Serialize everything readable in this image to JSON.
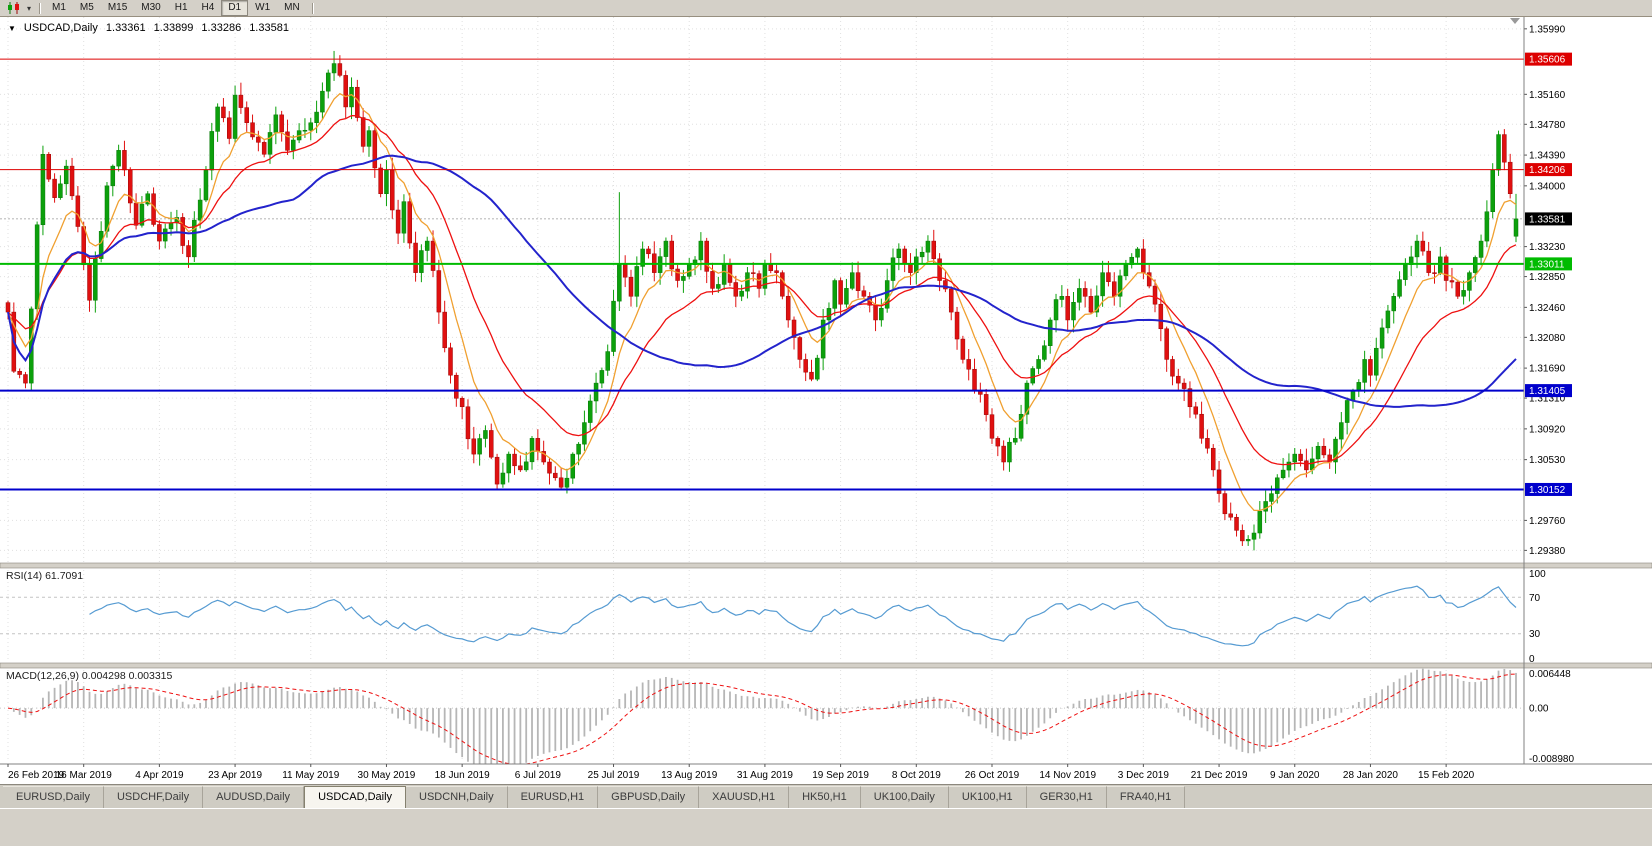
{
  "toolbar": {
    "chart_type_icon": "candlestick-chart",
    "caret_glyph": "▾",
    "timeframes": [
      "M1",
      "M5",
      "M15",
      "M30",
      "H1",
      "H4",
      "D1",
      "W1",
      "MN"
    ],
    "active_timeframe": "D1"
  },
  "chart_header": {
    "collapse_glyph": "▼",
    "symbol": "USDCAD,Daily",
    "open": "1.33361",
    "high": "1.33899",
    "low": "1.33286",
    "close": "1.33581"
  },
  "chart_data": {
    "type": "candlestick",
    "symbol": "USDCAD",
    "timeframe": "Daily",
    "ohlc_last": {
      "open": 1.33361,
      "high": 1.33899,
      "low": 1.33286,
      "close": 1.33581
    },
    "y_axis": {
      "min": 1.2922,
      "max": 1.3614,
      "ticks": [
        1.3599,
        1.3516,
        1.3478,
        1.3439,
        1.34,
        1.3323,
        1.3285,
        1.3246,
        1.3208,
        1.3169,
        1.3131,
        1.3092,
        1.3053,
        1.2976,
        1.2938
      ]
    },
    "levels": [
      {
        "price": 1.35606,
        "label": "1.35606",
        "color": "#dd0000",
        "width": 1
      },
      {
        "price": 1.34206,
        "label": "1.34206",
        "color": "#dd0000",
        "width": 1
      },
      {
        "price": 1.33011,
        "label": "1.33011",
        "color": "#00bb00",
        "width": 2
      },
      {
        "price": 1.31405,
        "label": "1.31405",
        "color": "#0000cc",
        "width": 2
      },
      {
        "price": 1.30152,
        "label": "1.30152",
        "color": "#0000cc",
        "width": 2
      }
    ],
    "current_price": {
      "value": 1.33581,
      "label": "1.33581",
      "badge_color": "#000000"
    },
    "x_labels": [
      "26 Feb 2019",
      "16 Mar 2019",
      "4 Apr 2019",
      "23 Apr 2019",
      "11 May 2019",
      "30 May 2019",
      "18 Jun 2019",
      "6 Jul 2019",
      "25 Jul 2019",
      "13 Aug 2019",
      "31 Aug 2019",
      "19 Sep 2019",
      "8 Oct 2019",
      "26 Oct 2019",
      "14 Nov 2019",
      "3 Dec 2019",
      "21 Dec 2019",
      "9 Jan 2020",
      "28 Jan 2020",
      "15 Feb 2020"
    ],
    "candles_per_label": 13,
    "num_candles": 260,
    "price_path": [
      [
        0,
        1.324
      ],
      [
        1,
        1.3165
      ],
      [
        3,
        1.315
      ],
      [
        6,
        1.344
      ],
      [
        8,
        1.3385
      ],
      [
        10,
        1.3425
      ],
      [
        13,
        1.33
      ],
      [
        14,
        1.3255
      ],
      [
        17,
        1.34
      ],
      [
        19,
        1.3445
      ],
      [
        22,
        1.335
      ],
      [
        24,
        1.339
      ],
      [
        26,
        1.333
      ],
      [
        29,
        1.336
      ],
      [
        31,
        1.331
      ],
      [
        34,
        1.342
      ],
      [
        36,
        1.35
      ],
      [
        38,
        1.346
      ],
      [
        39,
        1.3515
      ],
      [
        41,
        1.348
      ],
      [
        44,
        1.344
      ],
      [
        46,
        1.349
      ],
      [
        48,
        1.3445
      ],
      [
        50,
        1.347
      ],
      [
        52,
        1.348
      ],
      [
        54,
        1.352
      ],
      [
        56,
        1.3555
      ],
      [
        57,
        1.354
      ],
      [
        58,
        1.35
      ],
      [
        59,
        1.3525
      ],
      [
        61,
        1.345
      ],
      [
        62,
        1.347
      ],
      [
        64,
        1.339
      ],
      [
        65,
        1.342
      ],
      [
        67,
        1.334
      ],
      [
        68,
        1.338
      ],
      [
        70,
        1.329
      ],
      [
        72,
        1.333
      ],
      [
        74,
        1.324
      ],
      [
        76,
        1.316
      ],
      [
        78,
        1.312
      ],
      [
        80,
        1.306
      ],
      [
        82,
        1.309
      ],
      [
        84,
        1.3022
      ],
      [
        86,
        1.306
      ],
      [
        88,
        1.304
      ],
      [
        90,
        1.308
      ],
      [
        92,
        1.305
      ],
      [
        94,
        1.303
      ],
      [
        95,
        1.3018
      ],
      [
        97,
        1.306
      ],
      [
        99,
        1.31
      ],
      [
        101,
        1.315
      ],
      [
        103,
        1.319
      ],
      [
        105,
        1.33
      ],
      [
        107,
        1.326
      ],
      [
        109,
        1.332
      ],
      [
        111,
        1.329
      ],
      [
        113,
        1.333
      ],
      [
        115,
        1.328
      ],
      [
        117,
        1.33
      ],
      [
        119,
        1.333
      ],
      [
        121,
        1.327
      ],
      [
        123,
        1.33
      ],
      [
        125,
        1.326
      ],
      [
        127,
        1.329
      ],
      [
        129,
        1.327
      ],
      [
        130,
        1.33
      ],
      [
        132,
        1.329
      ],
      [
        134,
        1.323
      ],
      [
        136,
        1.318
      ],
      [
        138,
        1.3155
      ],
      [
        140,
        1.323
      ],
      [
        142,
        1.328
      ],
      [
        143,
        1.325
      ],
      [
        145,
        1.329
      ],
      [
        147,
        1.326
      ],
      [
        149,
        1.323
      ],
      [
        151,
        1.328
      ],
      [
        153,
        1.332
      ],
      [
        155,
        1.329
      ],
      [
        156,
        1.331
      ],
      [
        158,
        1.333
      ],
      [
        160,
        1.328
      ],
      [
        162,
        1.324
      ],
      [
        164,
        1.318
      ],
      [
        166,
        1.314
      ],
      [
        168,
        1.311
      ],
      [
        169,
        1.308
      ],
      [
        171,
        1.305
      ],
      [
        173,
        1.308
      ],
      [
        175,
        1.315
      ],
      [
        177,
        1.318
      ],
      [
        179,
        1.323
      ],
      [
        181,
        1.326
      ],
      [
        182,
        1.323
      ],
      [
        184,
        1.327
      ],
      [
        186,
        1.324
      ],
      [
        188,
        1.329
      ],
      [
        190,
        1.326
      ],
      [
        192,
        1.33
      ],
      [
        194,
        1.332
      ],
      [
        195,
        1.329
      ],
      [
        197,
        1.325
      ],
      [
        199,
        1.318
      ],
      [
        201,
        1.315
      ],
      [
        203,
        1.312
      ],
      [
        205,
        1.308
      ],
      [
        207,
        1.304
      ],
      [
        208,
        1.301
      ],
      [
        210,
        1.298
      ],
      [
        212,
        1.295
      ],
      [
        214,
        1.296
      ],
      [
        216,
        1.3
      ],
      [
        218,
        1.303
      ],
      [
        220,
        1.305
      ],
      [
        221,
        1.306
      ],
      [
        223,
        1.304
      ],
      [
        225,
        1.307
      ],
      [
        227,
        1.305
      ],
      [
        229,
        1.31
      ],
      [
        231,
        1.314
      ],
      [
        233,
        1.318
      ],
      [
        234,
        1.316
      ],
      [
        236,
        1.322
      ],
      [
        238,
        1.326
      ],
      [
        240,
        1.33
      ],
      [
        242,
        1.333
      ],
      [
        244,
        1.329
      ],
      [
        246,
        1.331
      ],
      [
        247,
        1.328
      ],
      [
        249,
        1.326
      ],
      [
        251,
        1.329
      ],
      [
        253,
        1.333
      ],
      [
        255,
        1.342
      ],
      [
        256,
        1.3465
      ],
      [
        257,
        1.343
      ],
      [
        258,
        1.339
      ],
      [
        259,
        1.33581
      ]
    ],
    "spikes": [
      [
        56,
        "h",
        1.3571
      ],
      [
        84,
        "l",
        1.3014
      ],
      [
        95,
        "l",
        1.3016
      ],
      [
        105,
        "h",
        1.3392
      ],
      [
        214,
        "l",
        1.2938
      ],
      [
        256,
        "h",
        1.347
      ]
    ],
    "moving_averages": [
      {
        "name": "fast",
        "type": "ema",
        "period": 8,
        "color": "#f0a030"
      },
      {
        "name": "medium",
        "type": "ema",
        "period": 20,
        "color": "#ee1111"
      },
      {
        "name": "slow",
        "type": "sma",
        "period": 50,
        "color": "#2323cc"
      }
    ],
    "rsi": {
      "title": "RSI(14) 61.7091",
      "period": 14,
      "current": 61.7091,
      "range": [
        0,
        100
      ],
      "guides": [
        30,
        70
      ],
      "axis": [
        {
          "label": "100",
          "value": 100
        },
        {
          "label": "70",
          "value": 70
        },
        {
          "label": "30",
          "value": 30
        },
        {
          "label": "0",
          "value": 0
        }
      ],
      "color": "#569bd2"
    },
    "macd": {
      "title": "MACD(12,26,9) 0.004298 0.003315",
      "fast": 12,
      "slow": 26,
      "signal": 9,
      "main_value": 0.004298,
      "signal_value": 0.003315,
      "range": [
        -0.00898,
        0.006448
      ],
      "axis": [
        {
          "label": "0.006448",
          "value": 0.006448
        },
        {
          "label": "0.00",
          "value": 0
        },
        {
          "label": "-0.008980",
          "value": -0.00898
        }
      ],
      "histogram_color": "#b6b6b6",
      "signal_color": "#ee1111"
    }
  },
  "colors": {
    "up_candle": "#0ca00c",
    "up_candle_edge": "#067806",
    "down_candle": "#e01010",
    "down_candle_edge": "#9a0707",
    "grid": "#e0e0e0",
    "panel_bg": "#ffffff",
    "chrome_bg": "#d4d0c8",
    "axis_text": "#000000",
    "current_price_line": "#9a9a9a"
  },
  "bottom_tabs": {
    "tabs": [
      "EURUSD,Daily",
      "USDCHF,Daily",
      "AUDUSD,Daily",
      "USDCAD,Daily",
      "USDCNH,Daily",
      "EURUSD,H1",
      "GBPUSD,Daily",
      "XAUUSD,H1",
      "HK50,H1",
      "UK100,Daily",
      "UK100,H1",
      "GER30,H1",
      "FRA40,H1"
    ],
    "active": "USDCAD,Daily"
  }
}
